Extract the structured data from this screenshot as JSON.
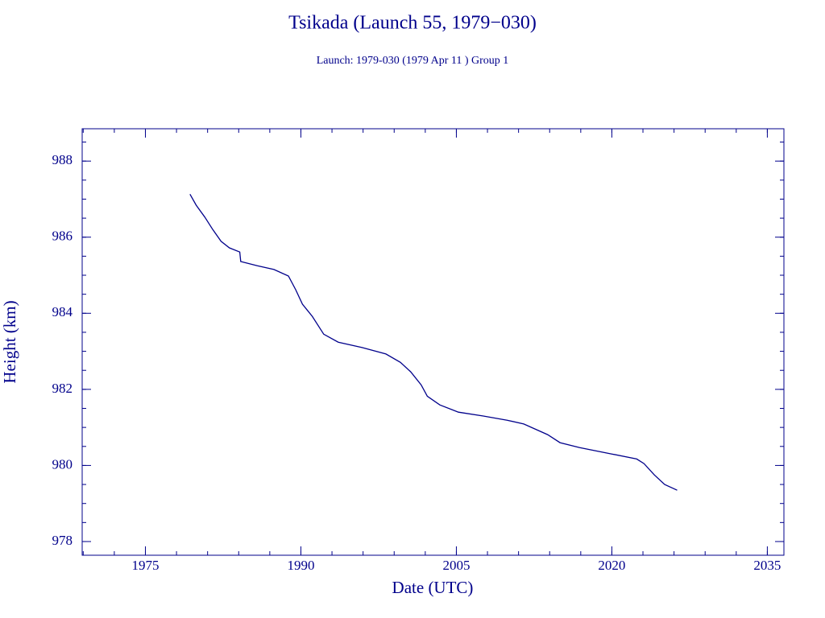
{
  "chart_data": {
    "type": "line",
    "title": "Tsikada (Launch 55, 1979−030)",
    "subtitle": "Launch: 1979-030  (1979 Apr 11 )  Group 1",
    "x_label": "Date (UTC)",
    "y_label": "Height (km)",
    "x": [
      1979.3,
      1979.9,
      1980.75,
      1981.5,
      1982.3,
      1983.1,
      1984.1,
      1984.2,
      1985.8,
      1987.4,
      1988.8,
      1989.5,
      1990.15,
      1991.1,
      1992.2,
      1993.6,
      1995.9,
      1998.2,
      1999.6,
      2000.6,
      2001.6,
      2002.2,
      2003.4,
      2005.2,
      2007.6,
      2009.9,
      2011.5,
      2013.8,
      2015.0,
      2016.9,
      2020.0,
      2022.4,
      2023.1,
      2024.1,
      2025.1,
      2026.3
    ],
    "series": [
      {
        "color": "#00008b",
        "values": [
          987.13,
          986.84,
          986.52,
          986.2,
          985.89,
          985.72,
          985.61,
          985.36,
          985.25,
          985.15,
          984.98,
          984.62,
          984.24,
          983.92,
          983.45,
          983.24,
          983.1,
          982.93,
          982.71,
          982.46,
          982.12,
          981.82,
          981.59,
          981.4,
          981.3,
          981.19,
          981.09,
          980.81,
          980.6,
          980.47,
          980.3,
          980.17,
          980.05,
          979.75,
          979.5,
          979.35
        ]
      }
    ],
    "xlim": [
      1968.9,
      2036.6
    ],
    "ylim": [
      977.64,
      988.85
    ],
    "xticks": [
      1975,
      1990,
      2005,
      2020,
      2035
    ],
    "yticks": [
      978,
      980,
      982,
      984,
      986,
      988
    ],
    "axis_color": "#00008b"
  }
}
